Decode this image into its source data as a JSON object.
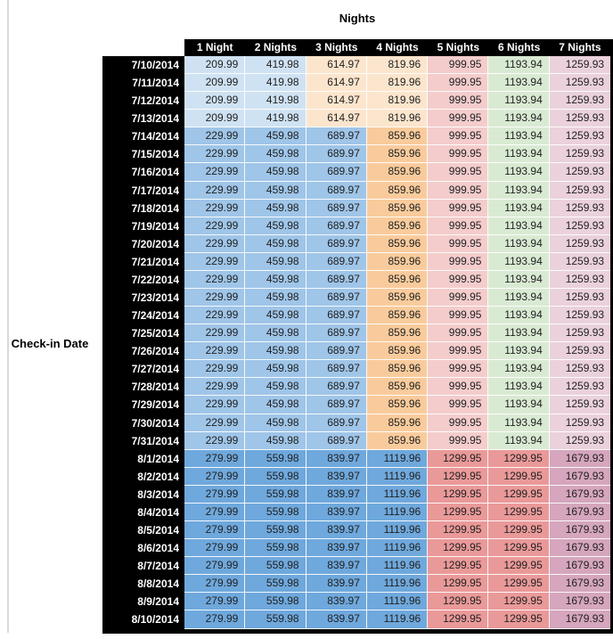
{
  "title": "Nights",
  "row_axis_label": "Check-in Date",
  "header_bg": "#000000",
  "header_text_color": "#ffffff",
  "colors": {
    "A": [
      "#cfe2f3",
      "#cfe2f3",
      "#fce5cd",
      "#fce5cd",
      "#f4cccc",
      "#d9ead3",
      "#ead1dc"
    ],
    "B": [
      "#9fc5e8",
      "#9fc5e8",
      "#9fc5e8",
      "#f9cb9c",
      "#f4cccc",
      "#d9ead3",
      "#ead1dc"
    ],
    "C": [
      "#6fa8dc",
      "#6fa8dc",
      "#6fa8dc",
      "#6fa8dc",
      "#ea9999",
      "#ea9999",
      "#d5a6bd"
    ]
  },
  "chart_data": {
    "type": "table",
    "title": "Nights",
    "row_axis_label": "Check-in Date",
    "columns": [
      "1 Night",
      "2 Nights",
      "3 Nights",
      "4 Nights",
      "5 Nights",
      "6 Nights",
      "7 Nights"
    ],
    "rows": [
      {
        "date": "7/10/2014",
        "group": "A",
        "values": [
          209.99,
          419.98,
          614.97,
          819.96,
          999.95,
          1193.94,
          1259.93
        ]
      },
      {
        "date": "7/11/2014",
        "group": "A",
        "values": [
          209.99,
          419.98,
          614.97,
          819.96,
          999.95,
          1193.94,
          1259.93
        ]
      },
      {
        "date": "7/12/2014",
        "group": "A",
        "values": [
          209.99,
          419.98,
          614.97,
          819.96,
          999.95,
          1193.94,
          1259.93
        ]
      },
      {
        "date": "7/13/2014",
        "group": "A",
        "values": [
          209.99,
          419.98,
          614.97,
          819.96,
          999.95,
          1193.94,
          1259.93
        ]
      },
      {
        "date": "7/14/2014",
        "group": "B",
        "values": [
          229.99,
          459.98,
          689.97,
          859.96,
          999.95,
          1193.94,
          1259.93
        ]
      },
      {
        "date": "7/15/2014",
        "group": "B",
        "values": [
          229.99,
          459.98,
          689.97,
          859.96,
          999.95,
          1193.94,
          1259.93
        ]
      },
      {
        "date": "7/16/2014",
        "group": "B",
        "values": [
          229.99,
          459.98,
          689.97,
          859.96,
          999.95,
          1193.94,
          1259.93
        ]
      },
      {
        "date": "7/17/2014",
        "group": "B",
        "values": [
          229.99,
          459.98,
          689.97,
          859.96,
          999.95,
          1193.94,
          1259.93
        ]
      },
      {
        "date": "7/18/2014",
        "group": "B",
        "values": [
          229.99,
          459.98,
          689.97,
          859.96,
          999.95,
          1193.94,
          1259.93
        ]
      },
      {
        "date": "7/19/2014",
        "group": "B",
        "values": [
          229.99,
          459.98,
          689.97,
          859.96,
          999.95,
          1193.94,
          1259.93
        ]
      },
      {
        "date": "7/20/2014",
        "group": "B",
        "values": [
          229.99,
          459.98,
          689.97,
          859.96,
          999.95,
          1193.94,
          1259.93
        ]
      },
      {
        "date": "7/21/2014",
        "group": "B",
        "values": [
          229.99,
          459.98,
          689.97,
          859.96,
          999.95,
          1193.94,
          1259.93
        ]
      },
      {
        "date": "7/22/2014",
        "group": "B",
        "values": [
          229.99,
          459.98,
          689.97,
          859.96,
          999.95,
          1193.94,
          1259.93
        ]
      },
      {
        "date": "7/23/2014",
        "group": "B",
        "values": [
          229.99,
          459.98,
          689.97,
          859.96,
          999.95,
          1193.94,
          1259.93
        ]
      },
      {
        "date": "7/24/2014",
        "group": "B",
        "values": [
          229.99,
          459.98,
          689.97,
          859.96,
          999.95,
          1193.94,
          1259.93
        ]
      },
      {
        "date": "7/25/2014",
        "group": "B",
        "values": [
          229.99,
          459.98,
          689.97,
          859.96,
          999.95,
          1193.94,
          1259.93
        ]
      },
      {
        "date": "7/26/2014",
        "group": "B",
        "values": [
          229.99,
          459.98,
          689.97,
          859.96,
          999.95,
          1193.94,
          1259.93
        ]
      },
      {
        "date": "7/27/2014",
        "group": "B",
        "values": [
          229.99,
          459.98,
          689.97,
          859.96,
          999.95,
          1193.94,
          1259.93
        ]
      },
      {
        "date": "7/28/2014",
        "group": "B",
        "values": [
          229.99,
          459.98,
          689.97,
          859.96,
          999.95,
          1193.94,
          1259.93
        ]
      },
      {
        "date": "7/29/2014",
        "group": "B",
        "values": [
          229.99,
          459.98,
          689.97,
          859.96,
          999.95,
          1193.94,
          1259.93
        ]
      },
      {
        "date": "7/30/2014",
        "group": "B",
        "values": [
          229.99,
          459.98,
          689.97,
          859.96,
          999.95,
          1193.94,
          1259.93
        ]
      },
      {
        "date": "7/31/2014",
        "group": "B",
        "values": [
          229.99,
          459.98,
          689.97,
          859.96,
          999.95,
          1193.94,
          1259.93
        ]
      },
      {
        "date": "8/1/2014",
        "group": "C",
        "values": [
          279.99,
          559.98,
          839.97,
          1119.96,
          1299.95,
          1299.95,
          1679.93
        ]
      },
      {
        "date": "8/2/2014",
        "group": "C",
        "values": [
          279.99,
          559.98,
          839.97,
          1119.96,
          1299.95,
          1299.95,
          1679.93
        ]
      },
      {
        "date": "8/3/2014",
        "group": "C",
        "values": [
          279.99,
          559.98,
          839.97,
          1119.96,
          1299.95,
          1299.95,
          1679.93
        ]
      },
      {
        "date": "8/4/2014",
        "group": "C",
        "values": [
          279.99,
          559.98,
          839.97,
          1119.96,
          1299.95,
          1299.95,
          1679.93
        ]
      },
      {
        "date": "8/5/2014",
        "group": "C",
        "values": [
          279.99,
          559.98,
          839.97,
          1119.96,
          1299.95,
          1299.95,
          1679.93
        ]
      },
      {
        "date": "8/6/2014",
        "group": "C",
        "values": [
          279.99,
          559.98,
          839.97,
          1119.96,
          1299.95,
          1299.95,
          1679.93
        ]
      },
      {
        "date": "8/7/2014",
        "group": "C",
        "values": [
          279.99,
          559.98,
          839.97,
          1119.96,
          1299.95,
          1299.95,
          1679.93
        ]
      },
      {
        "date": "8/8/2014",
        "group": "C",
        "values": [
          279.99,
          559.98,
          839.97,
          1119.96,
          1299.95,
          1299.95,
          1679.93
        ]
      },
      {
        "date": "8/9/2014",
        "group": "C",
        "values": [
          279.99,
          559.98,
          839.97,
          1119.96,
          1299.95,
          1299.95,
          1679.93
        ]
      },
      {
        "date": "8/10/2014",
        "group": "C",
        "values": [
          279.99,
          559.98,
          839.97,
          1119.96,
          1299.95,
          1299.95,
          1679.93
        ]
      }
    ]
  }
}
